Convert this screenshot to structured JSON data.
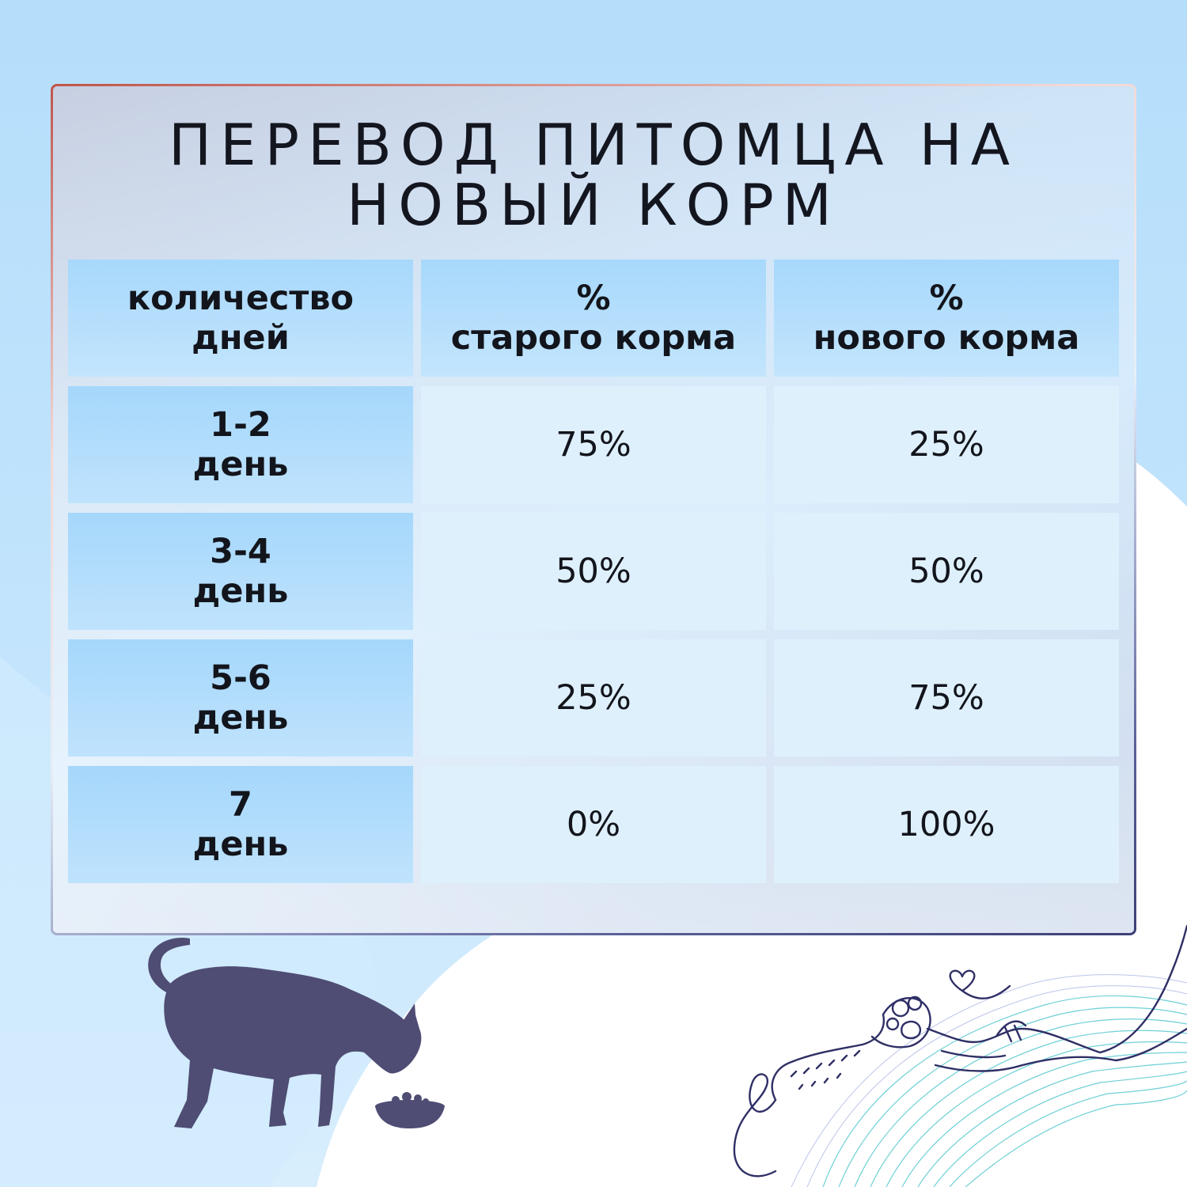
{
  "title": {
    "line1": "ПЕРЕВОД ПИТОМЦА НА",
    "line2": "НОВЫЙ КОРМ"
  },
  "table": {
    "headers": [
      {
        "line1": "количество",
        "line2": "дней"
      },
      {
        "line1": "%",
        "line2": "старого корма"
      },
      {
        "line1": "%",
        "line2": "нового корма"
      }
    ],
    "rows": [
      {
        "days": "1-2",
        "unit": "день",
        "old": "75%",
        "new": "25%"
      },
      {
        "days": "3-4",
        "unit": "день",
        "old": "50%",
        "new": "50%"
      },
      {
        "days": "5-6",
        "unit": "день",
        "old": "25%",
        "new": "75%"
      },
      {
        "days": "7",
        "unit": "день",
        "old": "0%",
        "new": "100%"
      }
    ]
  },
  "colors": {
    "background_blue": "#b7e0fb",
    "header_cell": "#a7d8fb",
    "value_cell": "#dff0fd",
    "dog_silhouette": "#4f4d74",
    "line_art": "#2f2f66",
    "wave_teal": "#3fc1c9"
  },
  "illustrations": {
    "dog": "dog-eating-from-bowl-icon",
    "hand_paw": "hand-and-paw-line-art-icon"
  }
}
